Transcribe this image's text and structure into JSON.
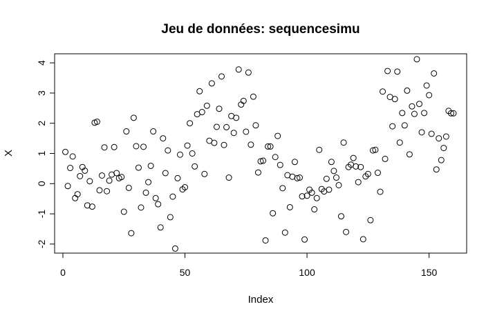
{
  "chart_data": {
    "type": "scatter",
    "title": "Jeu de données: sequencesimu",
    "xlabel": "Index",
    "ylabel": "X",
    "xlim": [
      -3.4,
      165.4
    ],
    "ylim": [
      -2.3,
      4.3
    ],
    "xticks": [
      0,
      50,
      100,
      150
    ],
    "yticks": [
      -2,
      -1,
      0,
      1,
      2,
      3,
      4
    ],
    "xtick_labels": [
      "0",
      "50",
      "100",
      "150"
    ],
    "ytick_labels": [
      "-2",
      "-1",
      "0",
      "1",
      "2",
      "3",
      "4"
    ],
    "grid": false,
    "marker": "open-circle",
    "x": [
      1,
      2,
      3,
      4,
      5,
      6,
      7,
      8,
      9,
      10,
      11,
      12,
      13,
      14,
      15,
      16,
      17,
      18,
      19,
      20,
      21,
      22,
      23,
      24,
      25,
      26,
      27,
      28,
      29,
      30,
      31,
      32,
      33,
      34,
      35,
      36,
      37,
      38,
      39,
      40,
      41,
      42,
      43,
      44,
      45,
      46,
      47,
      48,
      49,
      50,
      51,
      52,
      53,
      54,
      55,
      56,
      57,
      58,
      59,
      60,
      61,
      62,
      63,
      64,
      65,
      66,
      67,
      68,
      69,
      70,
      71,
      72,
      73,
      74,
      75,
      76,
      77,
      78,
      79,
      80,
      81,
      82,
      83,
      84,
      85,
      86,
      87,
      88,
      89,
      90,
      91,
      92,
      93,
      94,
      95,
      96,
      97,
      98,
      99,
      100,
      101,
      102,
      103,
      104,
      105,
      106,
      107,
      108,
      109,
      110,
      111,
      112,
      113,
      114,
      115,
      116,
      117,
      118,
      119,
      120,
      121,
      122,
      123,
      124,
      125,
      126,
      127,
      128,
      129,
      130,
      131,
      132,
      133,
      134,
      135,
      136,
      137,
      138,
      139,
      140,
      141,
      142,
      143,
      144,
      145,
      146,
      147,
      148,
      149,
      150,
      151,
      152,
      153,
      154,
      155,
      156,
      157,
      158,
      159,
      160
    ],
    "y": [
      1.05,
      -0.08,
      0.52,
      0.9,
      -0.48,
      -0.35,
      0.25,
      0.55,
      0.43,
      -0.72,
      0.08,
      -0.76,
      2.02,
      2.05,
      -0.22,
      0.27,
      1.2,
      -0.25,
      0.1,
      0.3,
      1.21,
      0.35,
      0.18,
      0.22,
      -0.93,
      1.73,
      -0.14,
      -1.64,
      2.18,
      1.24,
      0.53,
      -0.79,
      1.22,
      -0.3,
      0.05,
      0.59,
      1.73,
      -0.48,
      -0.68,
      -1.45,
      1.5,
      0.35,
      1.1,
      -1.11,
      -0.43,
      -2.15,
      0.18,
      0.96,
      -0.19,
      -0.12,
      1.26,
      2.0,
      1.0,
      0.57,
      2.3,
      3.06,
      2.37,
      0.32,
      2.58,
      1.42,
      3.32,
      1.35,
      1.88,
      2.48,
      3.55,
      1.28,
      1.87,
      0.2,
      2.24,
      1.68,
      2.18,
      3.78,
      2.62,
      2.74,
      1.72,
      3.68,
      1.29,
      2.88,
      1.93,
      0.37,
      0.74,
      0.76,
      -1.88,
      1.23,
      1.23,
      -0.98,
      0.88,
      1.58,
      0.62,
      -0.15,
      -1.62,
      0.28,
      -0.78,
      0.23,
      0.72,
      0.18,
      0.2,
      -0.42,
      -1.85,
      -0.4,
      -0.2,
      -0.3,
      -0.85,
      -0.48,
      1.12,
      -0.18,
      -0.26,
      0.16,
      -0.2,
      0.72,
      0.42,
      0.2,
      -0.05,
      -1.08,
      1.36,
      -1.6,
      0.55,
      0.63,
      0.85,
      0.57,
      0.05,
      0.55,
      -1.84,
      0.24,
      0.32,
      -1.21,
      1.1,
      1.12,
      0.36,
      -0.27,
      3.05,
      0.82,
      3.73,
      2.87,
      1.9,
      2.8,
      3.71,
      1.36,
      2.34,
      1.93,
      3.08,
      0.97,
      2.56,
      2.31,
      4.12,
      2.64,
      1.7,
      2.34,
      3.25,
      2.93,
      1.65,
      3.65,
      0.47,
      1.5,
      0.78,
      1.18,
      1.56,
      2.41,
      2.33,
      2.33
    ]
  }
}
